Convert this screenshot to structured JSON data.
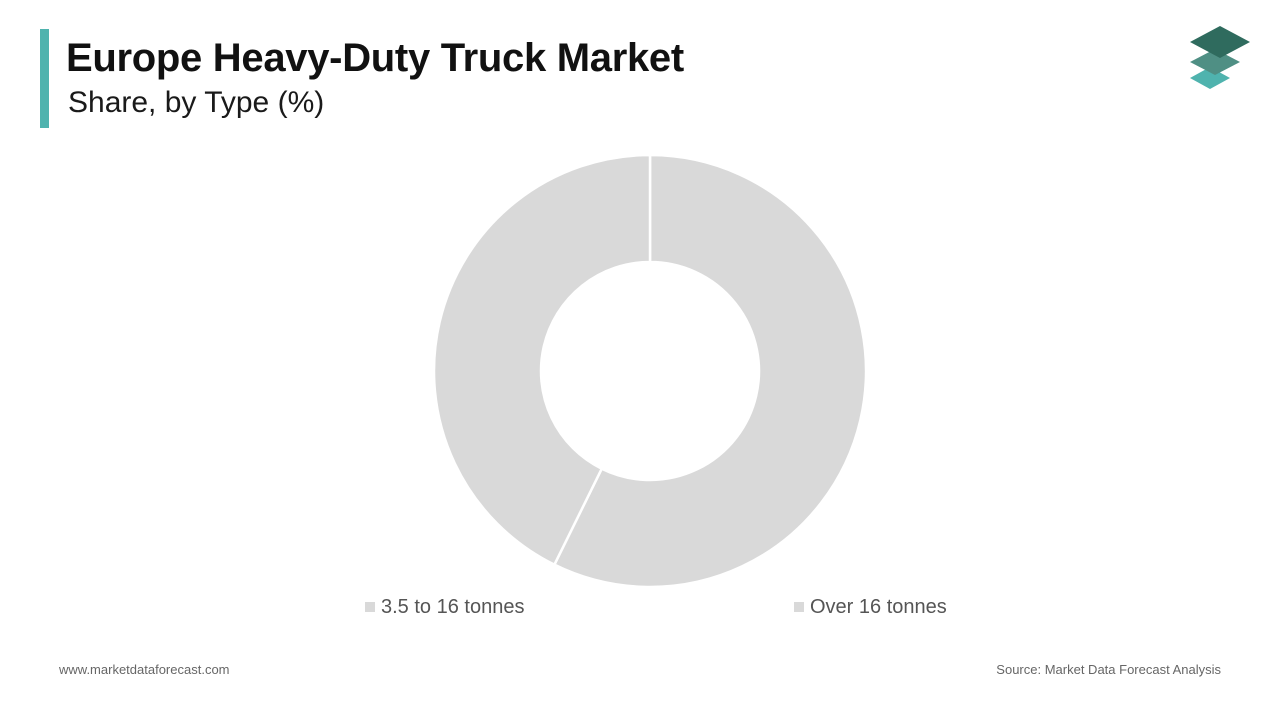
{
  "header": {
    "title": "Europe Heavy-Duty Truck Market",
    "subtitle": "Share, by Type (%)",
    "accent_color": "#4fb3ae"
  },
  "logo": {
    "icon": "stacked-layers-logo",
    "colors": [
      "#2f6b5e",
      "#4f8f84",
      "#4fb3ae"
    ]
  },
  "chart_data": {
    "type": "pie",
    "variant": "donut",
    "title": "Europe Heavy-Duty Truck Market",
    "subtitle": "Share, by Type (%)",
    "categories": [
      "3.5 to 16 tonnes",
      "Over 16 tonnes"
    ],
    "values": [
      42.7,
      57.3
    ],
    "unit": "%",
    "colors": [
      "#d9d9d9",
      "#d9d9d9"
    ],
    "separator_color": "#ffffff",
    "start_angle_deg": 0,
    "direction": "clockwise",
    "order_from_start": [
      "Over 16 tonnes",
      "3.5 to 16 tonnes"
    ],
    "legend": {
      "placement": "bottom",
      "entries": [
        "3.5 to 16 tonnes",
        "Over 16 tonnes"
      ]
    },
    "data_labels": false
  },
  "footer": {
    "website": "www.marketdataforecast.com",
    "source": "Source: Market Data Forecast Analysis"
  }
}
